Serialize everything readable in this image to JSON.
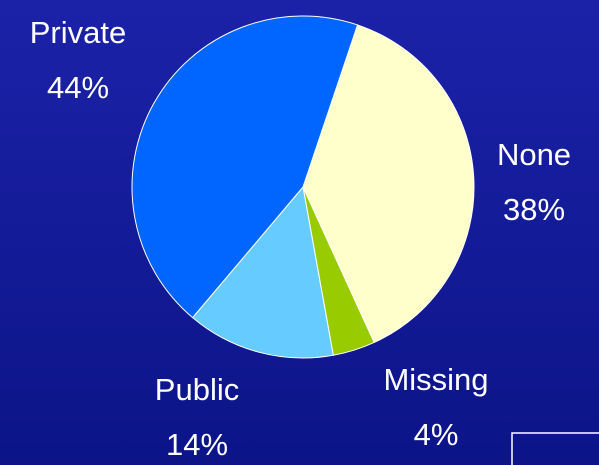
{
  "chart_data": {
    "type": "pie",
    "categories": [
      "None",
      "Missing",
      "Public",
      "Private"
    ],
    "values": [
      38,
      4,
      14,
      44
    ],
    "value_labels": [
      "38%",
      "4%",
      "14%",
      "44%"
    ],
    "colors": [
      "#ffffcc",
      "#99cc00",
      "#66ccff",
      "#0066ff"
    ]
  }
}
